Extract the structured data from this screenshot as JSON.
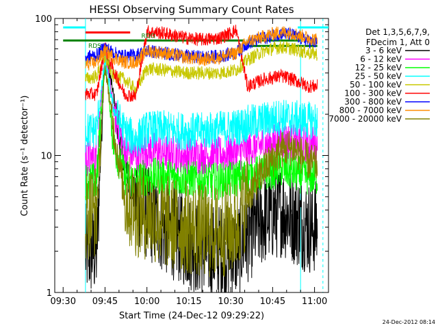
{
  "chart_data": {
    "type": "line",
    "title": "HESSI Observing Summary Count Rates",
    "xlabel": "Start Time (24-Dec-12 09:29:22)",
    "ylabel": "Count Rate (s⁻¹ detector⁻¹)",
    "yscale": "log",
    "ylim": [
      1,
      100
    ],
    "xlim_minutes": [
      -3,
      95
    ],
    "x_ticks": [
      {
        "minute": 0,
        "label": "09:30"
      },
      {
        "minute": 15,
        "label": "09:45"
      },
      {
        "minute": 30,
        "label": "10:00"
      },
      {
        "minute": 45,
        "label": "10:15"
      },
      {
        "minute": 60,
        "label": "10:30"
      },
      {
        "minute": 75,
        "label": "10:45"
      },
      {
        "minute": 90,
        "label": "11:00"
      }
    ],
    "y_ticks": [
      {
        "value": 1,
        "label": "1"
      },
      {
        "value": 10,
        "label": "10"
      },
      {
        "value": 100,
        "label": "100"
      }
    ],
    "legend_header": [
      "Det 1,3,5,6,7,9,",
      "FDecim 1, Att 0"
    ],
    "legend_position": "right, outside plot",
    "footer_timestamp": "24-Dec-2012 08:14",
    "annotations": [
      {
        "text": "RDO",
        "minute": 28,
        "value": 72
      },
      {
        "text": "RDS",
        "minute": 9,
        "value": 61
      }
    ],
    "flag_bars": [
      {
        "name": "red bar",
        "color": "#ff0000",
        "value": 79,
        "segments": [
          [
            8,
            24
          ]
        ]
      },
      {
        "name": "green bar",
        "color": "#008000",
        "value": 69,
        "segments": [
          [
            0,
            65
          ],
          [
            66,
            85
          ]
        ]
      },
      {
        "name": "green bar 2",
        "color": "#008000",
        "value": 63,
        "segments": [
          [
            66,
            91
          ]
        ]
      },
      {
        "name": "cyan bar",
        "color": "#00ffff",
        "value": 86,
        "segments": [
          [
            0,
            8
          ],
          [
            84,
            95
          ]
        ]
      }
    ],
    "vertical_markers": [
      {
        "minute": 8,
        "color": "#00ffff",
        "style": "solid"
      },
      {
        "minute": 85,
        "color": "#00ffff",
        "style": "solid"
      },
      {
        "minute": 93,
        "color": "#00ffff",
        "style": "dashed"
      }
    ],
    "series": [
      {
        "name": "3 - 6 keV",
        "color": "#000000",
        "x": [
          8,
          12,
          15,
          18,
          22,
          26,
          30,
          36,
          44,
          50,
          56,
          62,
          66,
          72,
          78,
          82,
          88,
          91
        ],
        "y": [
          2,
          2,
          60,
          28,
          8,
          5,
          3.8,
          3,
          2.4,
          2,
          2,
          2,
          2.6,
          3.5,
          4,
          3.6,
          3,
          3
        ]
      },
      {
        "name": "6 - 12 keV",
        "color": "#ff00ff",
        "x": [
          8,
          12,
          15,
          18,
          22,
          26,
          30,
          36,
          44,
          50,
          56,
          62,
          66,
          72,
          78,
          82,
          88,
          91
        ],
        "y": [
          9.5,
          9.5,
          60,
          22,
          11,
          10,
          11,
          10.5,
          10,
          10,
          10,
          10.5,
          11,
          12,
          13,
          12.5,
          12,
          12
        ]
      },
      {
        "name": "12 - 25 keV",
        "color": "#00ff00",
        "x": [
          8,
          12,
          15,
          18,
          22,
          26,
          30,
          36,
          44,
          50,
          56,
          62,
          66,
          72,
          78,
          82,
          88,
          91
        ],
        "y": [
          6.5,
          6.5,
          55,
          12,
          7,
          6.5,
          7,
          7,
          6.8,
          6.5,
          6.5,
          6.8,
          7,
          7.5,
          8,
          7.5,
          7,
          7
        ]
      },
      {
        "name": "25 - 50 keV",
        "color": "#00ffff",
        "x": [
          8,
          12,
          15,
          18,
          22,
          26,
          30,
          36,
          44,
          50,
          56,
          62,
          66,
          72,
          78,
          82,
          88,
          91
        ],
        "y": [
          15,
          15.5,
          50,
          22,
          15,
          13,
          15.5,
          15.5,
          15,
          15,
          15.5,
          16,
          17,
          18,
          19,
          18.5,
          18,
          18
        ]
      },
      {
        "name": "50 - 100 keV",
        "color": "#c8c800",
        "x": [
          8,
          12,
          15,
          18,
          22,
          26,
          30,
          36,
          44,
          50,
          56,
          62,
          66,
          72,
          78,
          82,
          88,
          91
        ],
        "y": [
          36,
          38,
          52,
          38,
          36,
          30,
          43,
          42,
          40,
          40,
          40,
          42,
          50,
          58,
          62,
          60,
          56,
          55
        ]
      },
      {
        "name": "100 - 300 keV",
        "color": "#ff0000",
        "x": [
          8,
          12,
          15,
          18,
          22,
          26,
          30,
          36,
          44,
          50,
          56,
          62,
          66,
          72,
          78,
          82,
          88,
          91
        ],
        "y": [
          28,
          28,
          62,
          42,
          28,
          27,
          80,
          78,
          72,
          70,
          72,
          82,
          32,
          36,
          38,
          36,
          32,
          32
        ]
      },
      {
        "name": "300 - 800 keV",
        "color": "#0000ff",
        "x": [
          8,
          12,
          15,
          18,
          22,
          26,
          30,
          36,
          44,
          50,
          56,
          62,
          66,
          72,
          78,
          82,
          88,
          91
        ],
        "y": [
          52,
          54,
          62,
          56,
          53,
          54,
          58,
          56,
          53,
          52,
          53,
          56,
          66,
          72,
          78,
          76,
          68,
          66
        ]
      },
      {
        "name": "800 - 7000 keV",
        "color": "#ff8c00",
        "x": [
          8,
          12,
          15,
          18,
          22,
          26,
          30,
          36,
          44,
          50,
          56,
          62,
          66,
          72,
          78,
          82,
          88,
          91
        ],
        "y": [
          46,
          48,
          58,
          52,
          48,
          48,
          58,
          56,
          52,
          50,
          52,
          56,
          68,
          74,
          80,
          78,
          72,
          70
        ]
      },
      {
        "name": "7000 - 20000 keV",
        "color": "#808000",
        "x": [
          8,
          12,
          15,
          18,
          22,
          26,
          30,
          36,
          44,
          50,
          56,
          62,
          66,
          72,
          78,
          82,
          88,
          91
        ],
        "y": [
          3.8,
          4,
          45,
          16,
          5,
          4,
          3.8,
          3.3,
          3,
          2.8,
          2.8,
          3,
          5,
          8,
          11,
          11.5,
          9,
          8.5
        ]
      }
    ]
  }
}
